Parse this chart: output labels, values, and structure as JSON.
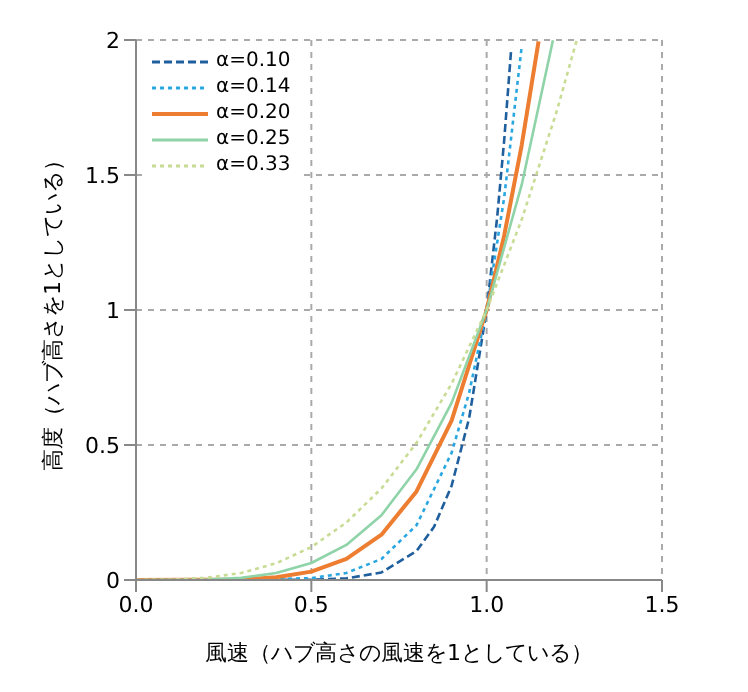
{
  "chart_data": {
    "type": "line",
    "xlabel": "風速（ハブ高さの風速を1としている）",
    "ylabel": "高度（ハブ高さを1としている）",
    "xlim": [
      0,
      1.5
    ],
    "ylim": [
      0,
      2
    ],
    "xticks": [
      {
        "value": 0,
        "label": "0.0"
      },
      {
        "value": 0.5,
        "label": "0.5"
      },
      {
        "value": 1,
        "label": "1.0"
      },
      {
        "value": 1.5,
        "label": "1.5"
      }
    ],
    "yticks": [
      0,
      0.5,
      1,
      1.5,
      2
    ],
    "grid": true,
    "legend": "top left",
    "marker": "none",
    "series": [
      {
        "name": "α=0.10",
        "color": "#1f5f9e",
        "line_style": "dashed",
        "x": [
          0,
          0.5,
          0.6,
          0.7,
          0.8,
          0.85,
          0.9,
          0.95,
          1,
          1.03,
          1.05,
          1.07
        ],
        "values": [
          0,
          0.001,
          0.006,
          0.028,
          0.107,
          0.197,
          0.349,
          0.599,
          1,
          1.344,
          1.629,
          1.967
        ]
      },
      {
        "name": "α=0.14",
        "color": "#2aa7e0",
        "line_style": "dotted",
        "x": [
          0,
          0.3,
          0.5,
          0.6,
          0.7,
          0.8,
          0.9,
          0.95,
          1,
          1.05,
          1.1
        ],
        "values": [
          0,
          0,
          0.007,
          0.026,
          0.078,
          0.203,
          0.471,
          0.693,
          1,
          1.417,
          1.976
        ]
      },
      {
        "name": "α=0.20",
        "color": "#ed7d31",
        "line_style": "solid",
        "x": [
          0,
          0.3,
          0.4,
          0.5,
          0.6,
          0.7,
          0.8,
          0.9,
          1,
          1.05,
          1.1,
          1.148
        ],
        "values": [
          0,
          0.002,
          0.01,
          0.031,
          0.078,
          0.168,
          0.328,
          0.59,
          1,
          1.276,
          1.611,
          1.995
        ]
      },
      {
        "name": "α=0.25",
        "color": "#8fd3a8",
        "line_style": "solid",
        "x": [
          0,
          0.2,
          0.3,
          0.4,
          0.5,
          0.6,
          0.7,
          0.8,
          0.9,
          1,
          1.1,
          1.189
        ],
        "values": [
          0,
          0.002,
          0.008,
          0.026,
          0.063,
          0.13,
          0.24,
          0.41,
          0.656,
          1,
          1.464,
          1.999
        ]
      },
      {
        "name": "α=0.33",
        "color": "#c9dc95",
        "line_style": "dotted",
        "x": [
          0,
          0.1,
          0.2,
          0.3,
          0.4,
          0.5,
          0.6,
          0.7,
          0.8,
          0.9,
          1,
          1.1,
          1.2,
          1.257
        ],
        "values": [
          0,
          0.001,
          0.008,
          0.026,
          0.062,
          0.122,
          0.213,
          0.339,
          0.508,
          0.727,
          1,
          1.335,
          1.737,
          2
        ]
      }
    ]
  }
}
